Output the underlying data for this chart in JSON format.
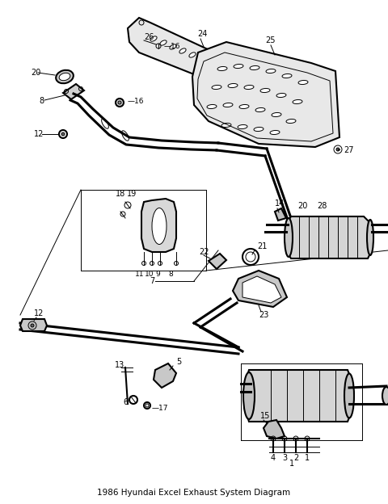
{
  "title": "1986 Hyundai Excel Exhaust System Diagram",
  "bg_color": "#ffffff",
  "line_color": "#000000",
  "fig_width": 4.8,
  "fig_height": 6.24,
  "dpi": 100
}
